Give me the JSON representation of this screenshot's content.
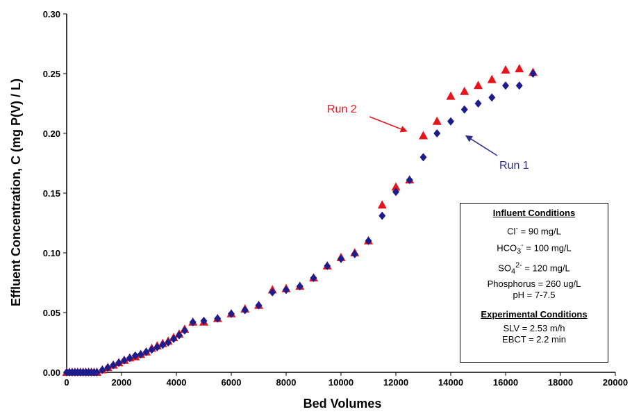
{
  "chart_data": {
    "type": "scatter",
    "xlabel": "Bed Volumes",
    "ylabel": "Effluent Concentration, C (mg P(V) / L)",
    "xlim": [
      0,
      20000
    ],
    "ylim": [
      0,
      0.3
    ],
    "x_ticks": [
      "0",
      "2000",
      "4000",
      "6000",
      "8000",
      "10000",
      "12000",
      "14000",
      "16000",
      "18000",
      "20000"
    ],
    "y_ticks": [
      "0.00",
      "0.05",
      "0.10",
      "0.15",
      "0.20",
      "0.25",
      "0.30"
    ],
    "grid": false,
    "series": [
      {
        "name": "Run 1",
        "marker": "diamond",
        "color": "#1c1c8c",
        "points": [
          [
            0,
            0
          ],
          [
            100,
            0
          ],
          [
            200,
            0
          ],
          [
            300,
            0
          ],
          [
            400,
            0
          ],
          [
            500,
            0
          ],
          [
            600,
            0
          ],
          [
            700,
            0
          ],
          [
            800,
            0
          ],
          [
            900,
            0
          ],
          [
            1000,
            0
          ],
          [
            1100,
            0
          ],
          [
            1300,
            0.002
          ],
          [
            1500,
            0.004
          ],
          [
            1700,
            0.006
          ],
          [
            1900,
            0.008
          ],
          [
            2100,
            0.01
          ],
          [
            2300,
            0.012
          ],
          [
            2500,
            0.014
          ],
          [
            2700,
            0.015
          ],
          [
            2900,
            0.017
          ],
          [
            3100,
            0.019
          ],
          [
            3300,
            0.021
          ],
          [
            3500,
            0.023
          ],
          [
            3700,
            0.025
          ],
          [
            3900,
            0.028
          ],
          [
            4100,
            0.031
          ],
          [
            4300,
            0.035
          ],
          [
            4600,
            0.042
          ],
          [
            5000,
            0.043
          ],
          [
            5500,
            0.045
          ],
          [
            6000,
            0.049
          ],
          [
            6500,
            0.052
          ],
          [
            7000,
            0.056
          ],
          [
            7500,
            0.067
          ],
          [
            8000,
            0.069
          ],
          [
            8500,
            0.072
          ],
          [
            9000,
            0.079
          ],
          [
            9500,
            0.089
          ],
          [
            10000,
            0.095
          ],
          [
            10500,
            0.099
          ],
          [
            11000,
            0.11
          ],
          [
            11500,
            0.131
          ],
          [
            12000,
            0.151
          ],
          [
            12500,
            0.161
          ],
          [
            13000,
            0.18
          ],
          [
            13500,
            0.2
          ],
          [
            14000,
            0.21
          ],
          [
            14500,
            0.22
          ],
          [
            15000,
            0.225
          ],
          [
            15500,
            0.23
          ],
          [
            16000,
            0.24
          ],
          [
            16500,
            0.24
          ],
          [
            17000,
            0.25
          ]
        ]
      },
      {
        "name": "Run 2",
        "marker": "triangle",
        "color": "#e8141b",
        "points": [
          [
            0,
            0
          ],
          [
            100,
            0
          ],
          [
            200,
            0
          ],
          [
            300,
            0
          ],
          [
            400,
            0
          ],
          [
            500,
            0
          ],
          [
            600,
            0
          ],
          [
            700,
            0
          ],
          [
            800,
            0
          ],
          [
            900,
            0
          ],
          [
            1000,
            0
          ],
          [
            1100,
            0
          ],
          [
            1300,
            0.002
          ],
          [
            1500,
            0.004
          ],
          [
            1700,
            0.006
          ],
          [
            1900,
            0.008
          ],
          [
            2100,
            0.01
          ],
          [
            2300,
            0.012
          ],
          [
            2500,
            0.013
          ],
          [
            2700,
            0.015
          ],
          [
            2900,
            0.017
          ],
          [
            3100,
            0.02
          ],
          [
            3300,
            0.022
          ],
          [
            3500,
            0.024
          ],
          [
            3700,
            0.026
          ],
          [
            3900,
            0.029
          ],
          [
            4100,
            0.032
          ],
          [
            4300,
            0.036
          ],
          [
            4600,
            0.042
          ],
          [
            5000,
            0.042
          ],
          [
            5500,
            0.045
          ],
          [
            6000,
            0.049
          ],
          [
            6500,
            0.053
          ],
          [
            7000,
            0.056
          ],
          [
            7500,
            0.069
          ],
          [
            8000,
            0.07
          ],
          [
            8500,
            0.072
          ],
          [
            9000,
            0.079
          ],
          [
            9500,
            0.089
          ],
          [
            10000,
            0.096
          ],
          [
            10500,
            0.1
          ],
          [
            11000,
            0.11
          ],
          [
            11500,
            0.14
          ],
          [
            12000,
            0.155
          ],
          [
            12500,
            0.161
          ],
          [
            13000,
            0.198
          ],
          [
            13500,
            0.21
          ],
          [
            14000,
            0.231
          ],
          [
            14500,
            0.235
          ],
          [
            15000,
            0.24
          ],
          [
            15500,
            0.245
          ],
          [
            16000,
            0.253
          ],
          [
            16500,
            0.254
          ],
          [
            17000,
            0.251
          ]
        ]
      }
    ],
    "annotations": [
      {
        "text": "Run 2",
        "series": "Run 2",
        "arrow_to": [
          12400,
          0.2
        ]
      },
      {
        "text": "Run 1",
        "series": "Run 1",
        "arrow_to": [
          14400,
          0.198
        ]
      }
    ]
  },
  "info_box": {
    "influent_title": "Influent Conditions",
    "cl_base": "Cl",
    "cl_sup": "-",
    "cl_value": " = 90 mg/L",
    "hco3_base": "HCO",
    "hco3_sub": "3",
    "hco3_sup": "-",
    "hco3_value": " = 100 mg/L",
    "so4_base": "SO",
    "so4_sub": "4",
    "so4_sup": "2-",
    "so4_value": " = 120 mg/L",
    "phosphorus": "Phosphorus = 260 ug/L",
    "ph": "pH = 7-7.5",
    "experimental_title": "Experimental Conditions",
    "slv": "SLV = 2.53 m/h",
    "ebct": "EBCT = 2.2 min"
  }
}
